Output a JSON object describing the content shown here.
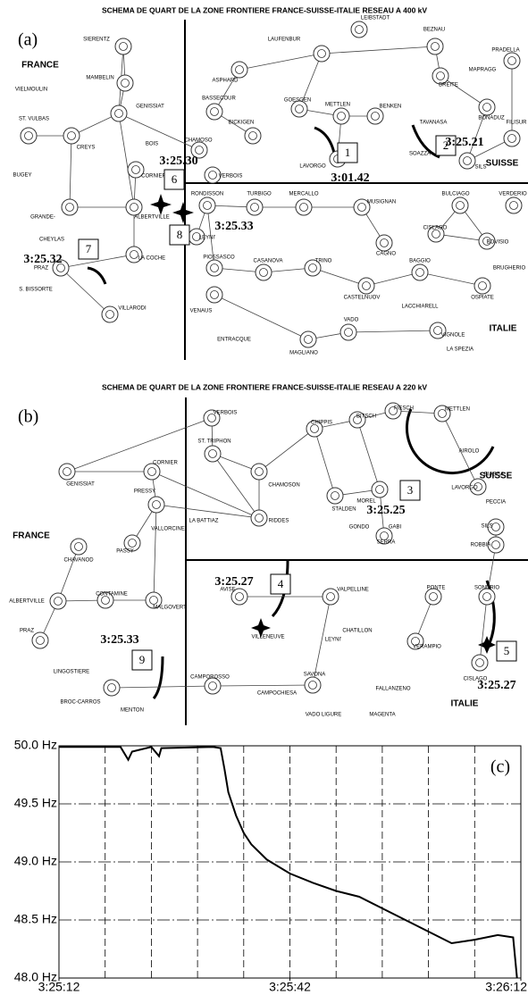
{
  "panel_a": {
    "title": "SCHEMA DE QUART DE LA ZONE FRONTIERE FRANCE-SUISSE-ITALIE RESEAU A 400 kV",
    "label": "(a)",
    "regions": [
      "FRANCE",
      "SUISSE",
      "ITALIE"
    ],
    "nodes": [
      "SIERENTZ",
      "MAMBELIN",
      "VIELMOULIN",
      "GENISSIAT",
      "ST. VULBAS",
      "CREYS",
      "BOIS",
      "CORNIER",
      "GRANDE-",
      "ALBERTVILLE",
      "BUGEY",
      "CHEYLAS",
      "LA COCHE",
      "PRAZ",
      "S. BISSORTE",
      "VILLARODI",
      "LAUFENBUR",
      "LEIBSTADT",
      "ASPHARD",
      "BASSECOUR",
      "BICKIGEN",
      "GOESGEN",
      "METTLEN",
      "BENKEN",
      "BEZNAU",
      "BREITE",
      "MAPRAGG",
      "PRADELLA",
      "FILISUR",
      "TAVANASA",
      "BONADUZ",
      "SOAZZA",
      "SILS",
      "LAVORGO",
      "CHAMOSO",
      "VERBOIS",
      "RONDISSON",
      "TURBIGO",
      "MERCALLO",
      "MUSIGNAN",
      "BULCIAGO",
      "VERDERIO",
      "LEYNI'",
      "CAGNO",
      "CISLAGO",
      "BOVISIO",
      "BRUGHERIO",
      "PIOSSASCO",
      "CASANOVA",
      "TRINO",
      "BAGGIO",
      "OSPIATE",
      "CASTELNUOV",
      "LACCHIARELL",
      "VENAUS",
      "ENTRACQUE",
      "MAGLIANO",
      "VADO",
      "VIGNOLE",
      "LA SPEZIA"
    ],
    "events": [
      {
        "number": 1,
        "time": "3:01.42"
      },
      {
        "number": 2,
        "time": "3:25.21"
      },
      {
        "number": 6,
        "time": "3:25.30"
      },
      {
        "number": 8,
        "time": "3:25.33"
      },
      {
        "number": 7,
        "time": "3:25.32"
      }
    ]
  },
  "panel_b": {
    "title": "SCHEMA DE QUART DE LA ZONE FRONTIERE FRANCE-SUISSE-ITALIE RESEAU A 220 kV",
    "label": "(b)",
    "regions": [
      "FRANCE",
      "SUISSE",
      "ITALIE"
    ],
    "nodes": [
      "VERBOIS",
      "GENISSIAT",
      "CORNIER",
      "ST. TRIPHON",
      "CHAMOSON",
      "CHIPPIS",
      "BITSCH",
      "FIESCH",
      "METTLEN",
      "AIROLO",
      "MOREL",
      "STALDEN",
      "PRESSY",
      "LA BATTIAZ",
      "RIDDES",
      "VALLORCINE",
      "PASSY",
      "GONDO",
      "GABI",
      "SERRA",
      "BIASCA",
      "LAVORGO",
      "PECCIA",
      "SILS",
      "ROBBIA",
      "CHAVANOD",
      "ALBERTVILLE",
      "CONTAMINE",
      "MALGOVERT",
      "PRAZ",
      "LINGOSTIERE",
      "BROC-CARROS",
      "MENTON",
      "AVISE",
      "VILLENEUVE",
      "VALPELLINE",
      "CHATILLON",
      "LEYNI'",
      "CAMPOROSSO",
      "CAMPOCHIESA",
      "SAVONA",
      "VADO LIGURE",
      "PONTE",
      "SONDRIO",
      "VERAMPIO",
      "FALLANZENO",
      "MAGENTA",
      "CISLAGO"
    ],
    "events": [
      {
        "number": 3,
        "time": "3:25.25"
      },
      {
        "number": 4,
        "time": "3:25.27"
      },
      {
        "number": 9,
        "time": "3:25.33"
      },
      {
        "number": 5,
        "time": "3:25.27"
      }
    ]
  },
  "chart_data": {
    "type": "line",
    "label": "(c)",
    "color": "#000000",
    "x": [
      12312,
      12320,
      12321,
      12321.5,
      12324,
      12325,
      12325.3,
      12332,
      12333,
      12333.5,
      12334,
      12335,
      12336,
      12337,
      12339,
      12342,
      12345,
      12348,
      12351,
      12354,
      12357,
      12360,
      12363,
      12366,
      12369,
      12371,
      12371.5
    ],
    "values": [
      49.99,
      49.99,
      49.88,
      49.95,
      49.99,
      49.91,
      49.98,
      49.99,
      49.98,
      49.8,
      49.6,
      49.4,
      49.25,
      49.15,
      49.02,
      48.9,
      48.82,
      48.75,
      48.7,
      48.6,
      48.5,
      48.4,
      48.3,
      48.33,
      48.37,
      48.35,
      48.0
    ],
    "xlim": [
      12312,
      12372
    ],
    "ylim": [
      48,
      50
    ],
    "xticks": [
      {
        "value": 12312,
        "label": "3:25:12"
      },
      {
        "value": 12342,
        "label": "3:25:42"
      },
      {
        "value": 12372,
        "label": "3:26:12"
      }
    ],
    "yticks": [
      {
        "value": 50,
        "label": "50.0 Hz"
      },
      {
        "value": 49.5,
        "label": "49.5 Hz"
      },
      {
        "value": 49,
        "label": "49.0 Hz"
      },
      {
        "value": 48.5,
        "label": "48.5 Hz"
      },
      {
        "value": 48,
        "label": "48.0 Hz"
      }
    ],
    "grid": true
  }
}
